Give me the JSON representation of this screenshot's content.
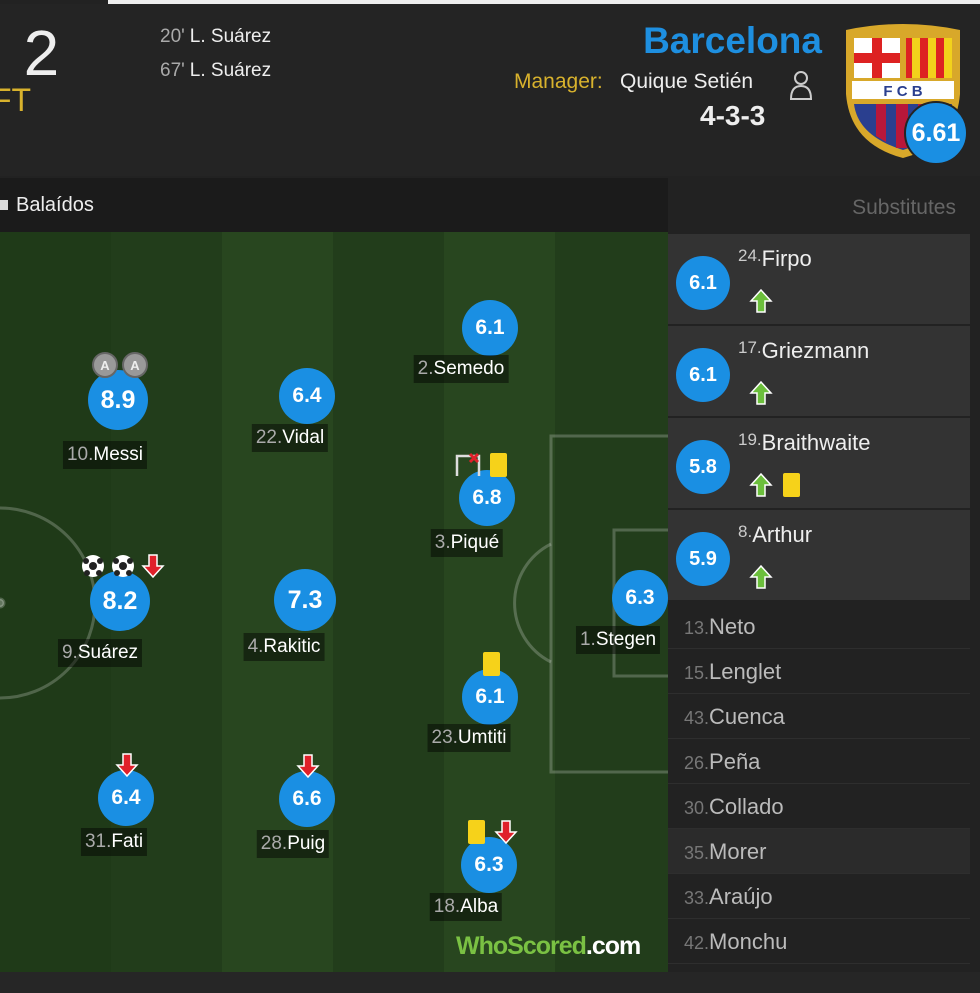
{
  "header": {
    "score": ": 2",
    "status": "FT",
    "goals": [
      {
        "minute": "20'",
        "player": "L. Suárez"
      },
      {
        "minute": "67'",
        "player": "L. Suárez"
      }
    ],
    "team": "Barcelona",
    "manager_label": "Manager:",
    "manager": "Quique Setién",
    "formation": "4-3-3",
    "crest": "F C B",
    "team_rating": 6.61
  },
  "venue": "Balaídos",
  "assist_badge": "A",
  "players": [
    {
      "number": "10.",
      "name": "Messi",
      "rating": 8.9,
      "icons": [
        "assist",
        "assist"
      ]
    },
    {
      "number": "22.",
      "name": "Vidal",
      "rating": 6.4,
      "icons": []
    },
    {
      "number": "2.",
      "name": "Semedo",
      "rating": 6.1,
      "icons": []
    },
    {
      "number": "3.",
      "name": "Piqué",
      "rating": 6.8,
      "icons": [
        "own-goal",
        "yellow"
      ]
    },
    {
      "number": "9.",
      "name": "Suárez",
      "rating": 8.2,
      "icons": [
        "goal",
        "goal",
        "sub-off"
      ]
    },
    {
      "number": "4.",
      "name": "Rakitic",
      "rating": 7.3,
      "icons": []
    },
    {
      "number": "1.",
      "name": "Stegen",
      "rating": 6.3,
      "icons": []
    },
    {
      "number": "23.",
      "name": "Umtiti",
      "rating": 6.1,
      "icons": [
        "yellow"
      ]
    },
    {
      "number": "31.",
      "name": "Fati",
      "rating": 6.4,
      "icons": [
        "sub-off"
      ]
    },
    {
      "number": "28.",
      "name": "Puig",
      "rating": 6.6,
      "icons": [
        "sub-off"
      ]
    },
    {
      "number": "18.",
      "name": "Alba",
      "rating": 6.3,
      "icons": [
        "yellow",
        "sub-off"
      ]
    }
  ],
  "substitutes": {
    "title": "Substitutes",
    "used": [
      {
        "number": "24.",
        "name": "Firpo",
        "rating": 6.1,
        "icons": [
          "sub-on"
        ]
      },
      {
        "number": "17.",
        "name": "Griezmann",
        "rating": 6.1,
        "icons": [
          "sub-on"
        ]
      },
      {
        "number": "19.",
        "name": "Braithwaite",
        "rating": 5.8,
        "icons": [
          "sub-on",
          "yellow"
        ]
      },
      {
        "number": "8.",
        "name": "Arthur",
        "rating": 5.9,
        "icons": [
          "sub-on"
        ]
      }
    ],
    "unused": [
      {
        "number": "13.",
        "name": "Neto"
      },
      {
        "number": "15.",
        "name": "Lenglet"
      },
      {
        "number": "43.",
        "name": "Cuenca"
      },
      {
        "number": "26.",
        "name": "Peña"
      },
      {
        "number": "30.",
        "name": "Collado"
      },
      {
        "number": "35.",
        "name": "Morer"
      },
      {
        "number": "33.",
        "name": "Araújo"
      },
      {
        "number": "42.",
        "name": "Monchu"
      }
    ]
  },
  "watermark": {
    "who": "WhoScored",
    "dot": ".com"
  }
}
